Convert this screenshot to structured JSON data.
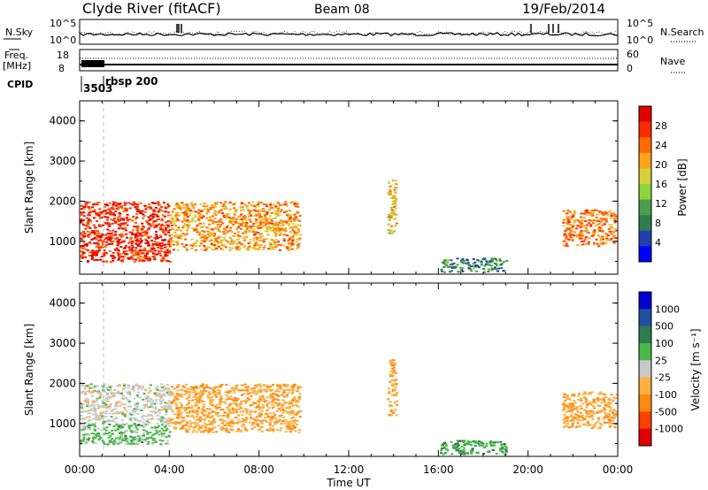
{
  "header": {
    "station": "Clyde River (fitACF)",
    "beam": "Beam 08",
    "date": "19/Feb/2014"
  },
  "top_panel": {
    "left_label": "N.Sky",
    "left_ticks": [
      "10^5",
      "10^0"
    ],
    "right_ticks": [
      "10^5",
      "10^0"
    ],
    "right_label": "N.Search"
  },
  "freq_panel": {
    "left_label_1": "Freq.",
    "left_label_2": "[MHz]",
    "left_ticks": [
      "18",
      "8"
    ],
    "right_ticks": [
      "60",
      "0"
    ],
    "right_label": "Nave"
  },
  "cpid_panel": {
    "label": "CPID",
    "id_1": "3503",
    "id_2": "rbsp 200"
  },
  "x_axis": {
    "label": "Time UT",
    "ticks": [
      "00:00",
      "04:00",
      "08:00",
      "12:00",
      "16:00",
      "20:00",
      "00:00"
    ]
  },
  "colors": {
    "power": [
      "#0000ff",
      "#1f3fb0",
      "#2e7d4f",
      "#4aa04a",
      "#8cd43c",
      "#d6d23a",
      "#ffa21a",
      "#ff6a00",
      "#ff2a00",
      "#e00000"
    ],
    "velocity": [
      "#e00000",
      "#ff4000",
      "#ff8a10",
      "#ffb040",
      "#c8c8c8",
      "#48b848",
      "#2e7d4f",
      "#1f4fa0",
      "#0000d0"
    ]
  },
  "chart_data": [
    {
      "type": "heatmap",
      "title": "",
      "ylabel": "Slant Range [km]",
      "xlabel": "",
      "yticks": [
        "1000",
        "2000",
        "3000",
        "4000"
      ],
      "ylim": [
        180,
        4500
      ],
      "xlim_hours": [
        0,
        24
      ],
      "colorbar": {
        "label": "Power [dB]",
        "ticks": [
          "4",
          "8",
          "12",
          "16",
          "20",
          "24",
          "28"
        ],
        "range": [
          0,
          30
        ]
      },
      "regions": [
        {
          "t": [
            0.0,
            4.0
          ],
          "range_km": [
            500,
            2000
          ],
          "level": 26
        },
        {
          "t": [
            4.0,
            9.8
          ],
          "range_km": [
            800,
            2000
          ],
          "level": 20
        },
        {
          "t": [
            13.7,
            14.1
          ],
          "range_km": [
            1200,
            2600
          ],
          "level": 18
        },
        {
          "t": [
            21.5,
            23.9
          ],
          "range_km": [
            900,
            1800
          ],
          "level": 22
        },
        {
          "t": [
            16.0,
            19.0
          ],
          "range_km": [
            250,
            600
          ],
          "level": 8
        }
      ]
    },
    {
      "type": "heatmap",
      "title": "",
      "ylabel": "Slant Range [km]",
      "xlabel": "Time UT",
      "yticks": [
        "1000",
        "2000",
        "3000",
        "4000"
      ],
      "ylim": [
        180,
        4500
      ],
      "xlim_hours": [
        0,
        24
      ],
      "colorbar": {
        "label": "Velocity [m s⁻¹]",
        "ticks": [
          "1000",
          "500",
          "100",
          "25",
          "-25",
          "-100",
          "-500",
          "-1000"
        ],
        "range": [
          -1000,
          1000
        ]
      },
      "regions": [
        {
          "t": [
            0.0,
            4.0
          ],
          "range_km": [
            500,
            1000
          ],
          "level": 200
        },
        {
          "t": [
            0.0,
            4.0
          ],
          "range_km": [
            1000,
            2000
          ],
          "level": 0
        },
        {
          "t": [
            4.0,
            9.8
          ],
          "range_km": [
            800,
            2000
          ],
          "level": -300
        },
        {
          "t": [
            13.7,
            14.1
          ],
          "range_km": [
            1200,
            2600
          ],
          "level": -300
        },
        {
          "t": [
            21.5,
            23.9
          ],
          "range_km": [
            900,
            1800
          ],
          "level": -300
        },
        {
          "t": [
            16.0,
            19.0
          ],
          "range_km": [
            250,
            600
          ],
          "level": 300
        }
      ]
    }
  ]
}
